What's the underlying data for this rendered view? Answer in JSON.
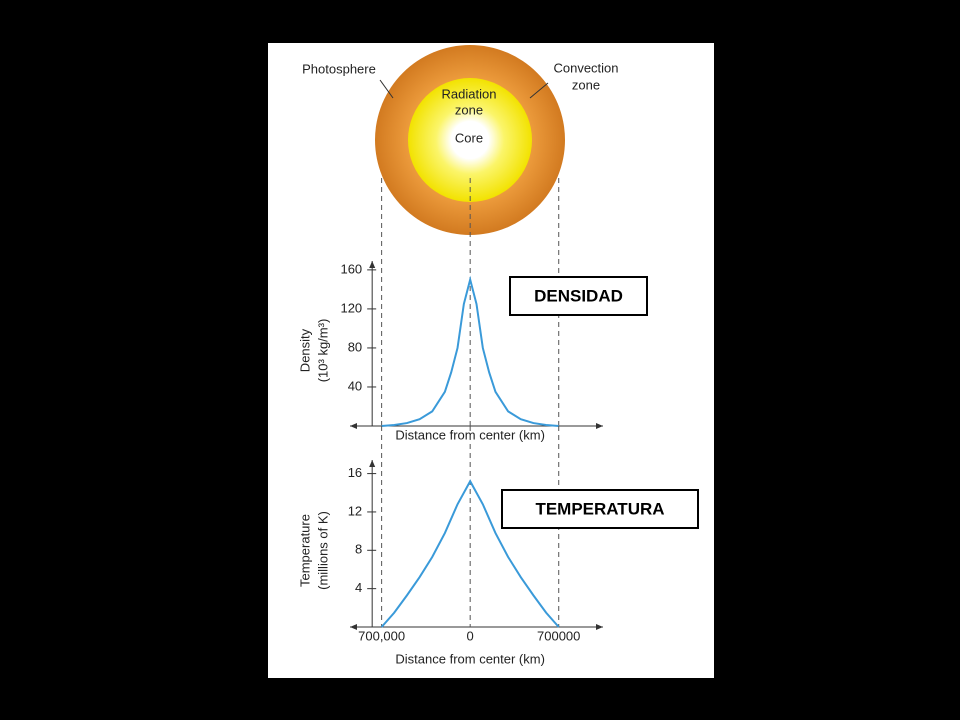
{
  "diagram": {
    "photosphere": "Photosphere",
    "convection_zone": [
      "Convection",
      "zone"
    ],
    "radiation_zone": [
      "Radiation",
      "zone"
    ],
    "core": "Core"
  },
  "chart_data": [
    {
      "type": "line",
      "ylabel": [
        "Density",
        "(10³ kg/m³)"
      ],
      "xlabel": "Distance from center (km)",
      "annotation": "DENSIDAD",
      "x": [
        -700000,
        -600000,
        -500000,
        -400000,
        -300000,
        -200000,
        -150000,
        -100000,
        -50000,
        0,
        50000,
        100000,
        150000,
        200000,
        300000,
        400000,
        500000,
        600000,
        700000
      ],
      "series": [
        {
          "color": "#3a9ad9",
          "values": [
            0,
            1,
            3,
            7,
            15,
            35,
            55,
            80,
            125,
            150,
            125,
            80,
            55,
            35,
            15,
            7,
            3,
            1,
            0
          ]
        }
      ],
      "xlim": [
        -950000,
        1050000
      ],
      "ylim": [
        0,
        165
      ],
      "yticks": [
        40,
        80,
        120,
        160
      ]
    },
    {
      "type": "line",
      "ylabel": [
        "Temperature",
        "(millions of K)"
      ],
      "xlabel": "Distance from center (km)",
      "annotation": "TEMPERATURA",
      "x": [
        -700000,
        -600000,
        -500000,
        -400000,
        -300000,
        -200000,
        -100000,
        0,
        100000,
        200000,
        300000,
        400000,
        500000,
        600000,
        700000
      ],
      "series": [
        {
          "color": "#3a9ad9",
          "values": [
            0,
            1.5,
            3.3,
            5.2,
            7.3,
            9.8,
            12.8,
            15.2,
            12.8,
            9.8,
            7.3,
            5.2,
            3.3,
            1.5,
            0
          ]
        }
      ],
      "xlim": [
        -950000,
        1050000
      ],
      "ylim": [
        0,
        17
      ],
      "yticks": [
        4,
        8,
        12,
        16
      ],
      "xticks": [
        {
          "value": -700000,
          "label": "700,000"
        },
        0,
        700000
      ]
    }
  ]
}
